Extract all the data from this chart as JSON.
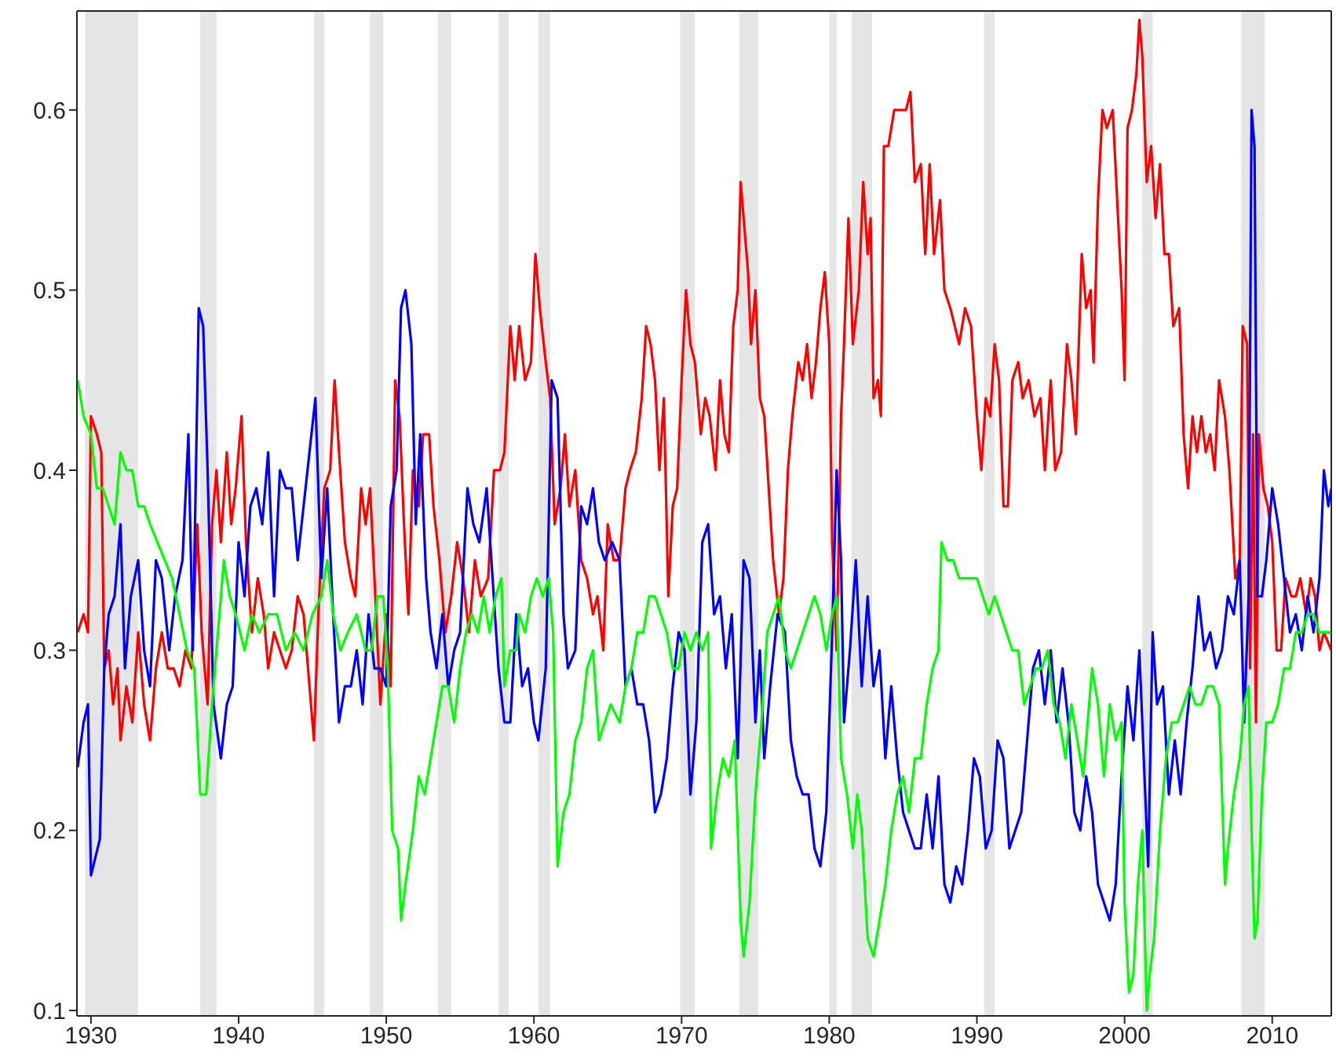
{
  "chart_data": {
    "type": "line",
    "xlim": [
      1929.05,
      2014
    ],
    "ylim": [
      0.097,
      0.655
    ],
    "xticks": [
      1930,
      1940,
      1950,
      1960,
      1970,
      1980,
      1990,
      2000,
      2010
    ],
    "yticks": [
      0.1,
      0.2,
      0.3,
      0.4,
      0.5,
      0.6
    ],
    "grid": false,
    "marker": "none",
    "line_style": "solid",
    "bands": [
      {
        "axis": "x",
        "from": 1929.6,
        "to": 1933.2,
        "color": "#e5e5e5"
      },
      {
        "axis": "x",
        "from": 1937.4,
        "to": 1938.5,
        "color": "#e5e5e5"
      },
      {
        "axis": "x",
        "from": 1945.1,
        "to": 1945.8,
        "color": "#e5e5e5"
      },
      {
        "axis": "x",
        "from": 1948.9,
        "to": 1949.8,
        "color": "#e5e5e5"
      },
      {
        "axis": "x",
        "from": 1953.5,
        "to": 1954.4,
        "color": "#e5e5e5"
      },
      {
        "axis": "x",
        "from": 1957.6,
        "to": 1958.3,
        "color": "#e5e5e5"
      },
      {
        "axis": "x",
        "from": 1960.3,
        "to": 1961.1,
        "color": "#e5e5e5"
      },
      {
        "axis": "x",
        "from": 1969.9,
        "to": 1970.9,
        "color": "#e5e5e5"
      },
      {
        "axis": "x",
        "from": 1973.9,
        "to": 1975.2,
        "color": "#e5e5e5"
      },
      {
        "axis": "x",
        "from": 1980.0,
        "to": 1980.5,
        "color": "#e5e5e5"
      },
      {
        "axis": "x",
        "from": 1981.5,
        "to": 1982.9,
        "color": "#e5e5e5"
      },
      {
        "axis": "x",
        "from": 1990.5,
        "to": 1991.2,
        "color": "#e5e5e5"
      },
      {
        "axis": "x",
        "from": 2001.2,
        "to": 2001.9,
        "color": "#e5e5e5"
      },
      {
        "axis": "x",
        "from": 2007.9,
        "to": 2009.5,
        "color": "#e5e5e5"
      }
    ],
    "series": [
      {
        "color": "#ff0000",
        "x": [
          1929.1,
          1929.5,
          1929.8,
          1930.0,
          1930.4,
          1930.7,
          1930.9,
          1931.2,
          1931.5,
          1931.8,
          1932.0,
          1932.4,
          1932.8,
          1933.2,
          1933.6,
          1934.0,
          1934.4,
          1934.8,
          1935.2,
          1935.6,
          1936.0,
          1936.4,
          1936.8,
          1937.2,
          1937.5,
          1937.9,
          1938.2,
          1938.5,
          1938.8,
          1939.2,
          1939.5,
          1939.8,
          1940.2,
          1940.5,
          1940.9,
          1941.3,
          1941.7,
          1942.0,
          1942.4,
          1942.8,
          1943.2,
          1943.6,
          1944.0,
          1944.4,
          1944.8,
          1945.1,
          1945.4,
          1945.8,
          1946.2,
          1946.5,
          1946.8,
          1947.2,
          1947.6,
          1947.9,
          1948.3,
          1948.6,
          1948.9,
          1949.2,
          1949.6,
          1950.0,
          1950.3,
          1950.6,
          1950.9,
          1951.2,
          1951.5,
          1951.8,
          1952.2,
          1952.5,
          1952.9,
          1953.2,
          1953.6,
          1954.0,
          1954.4,
          1954.8,
          1955.2,
          1955.6,
          1956.0,
          1956.4,
          1956.9,
          1957.3,
          1957.7,
          1958.0,
          1958.4,
          1958.7,
          1959.0,
          1959.4,
          1959.8,
          1960.1,
          1960.4,
          1960.8,
          1961.1,
          1961.4,
          1961.8,
          1962.1,
          1962.4,
          1962.8,
          1963.2,
          1963.6,
          1964.0,
          1964.3,
          1964.7,
          1965.0,
          1965.4,
          1965.8,
          1966.2,
          1966.5,
          1966.9,
          1967.3,
          1967.6,
          1967.9,
          1968.2,
          1968.5,
          1968.8,
          1969.1,
          1969.4,
          1969.7,
          1970.0,
          1970.3,
          1970.6,
          1970.9,
          1971.3,
          1971.6,
          1971.9,
          1972.3,
          1972.6,
          1972.9,
          1973.2,
          1973.5,
          1973.8,
          1974.0,
          1974.2,
          1974.5,
          1974.7,
          1975.0,
          1975.3,
          1975.6,
          1975.9,
          1976.2,
          1976.6,
          1976.9,
          1977.2,
          1977.5,
          1977.9,
          1978.2,
          1978.5,
          1978.8,
          1979.1,
          1979.4,
          1979.7,
          1980.0,
          1980.2,
          1980.5,
          1980.8,
          1981.0,
          1981.3,
          1981.6,
          1982.0,
          1982.3,
          1982.6,
          1982.8,
          1983.0,
          1983.3,
          1983.5,
          1983.7,
          1984.0,
          1984.4,
          1984.8,
          1985.2,
          1985.5,
          1985.8,
          1986.2,
          1986.5,
          1986.8,
          1987.1,
          1987.5,
          1987.8,
          1988.2,
          1988.5,
          1988.8,
          1989.2,
          1989.6,
          1990.0,
          1990.3,
          1990.6,
          1990.9,
          1991.2,
          1991.5,
          1991.8,
          1992.1,
          1992.4,
          1992.8,
          1993.1,
          1993.5,
          1993.9,
          1994.3,
          1994.6,
          1995.0,
          1995.3,
          1995.7,
          1996.1,
          1996.4,
          1996.7,
          1997.1,
          1997.4,
          1997.7,
          1997.9,
          1998.2,
          1998.5,
          1998.8,
          1999.2,
          1999.5,
          1999.8,
          2000.0,
          2000.2,
          2000.5,
          2000.8,
          2001.0,
          2001.2,
          2001.5,
          2001.8,
          2002.1,
          2002.4,
          2002.7,
          2003.0,
          2003.3,
          2003.7,
          2004.0,
          2004.3,
          2004.6,
          2004.9,
          2005.2,
          2005.5,
          2005.8,
          2006.1,
          2006.4,
          2006.8,
          2007.1,
          2007.5,
          2007.8,
          2008.0,
          2008.3,
          2008.5,
          2008.7,
          2008.9,
          2009.1,
          2009.4,
          2009.7,
          2010.0,
          2010.3,
          2010.6,
          2010.9,
          2011.3,
          2011.6,
          2011.9,
          2012.3,
          2012.6,
          2012.9,
          2013.2,
          2013.5,
          2014.0
        ],
        "values": [
          0.31,
          0.32,
          0.31,
          0.43,
          0.42,
          0.41,
          0.29,
          0.3,
          0.27,
          0.29,
          0.25,
          0.28,
          0.26,
          0.31,
          0.27,
          0.25,
          0.29,
          0.31,
          0.29,
          0.29,
          0.28,
          0.3,
          0.29,
          0.37,
          0.31,
          0.27,
          0.37,
          0.4,
          0.36,
          0.41,
          0.37,
          0.39,
          0.43,
          0.36,
          0.31,
          0.34,
          0.32,
          0.29,
          0.31,
          0.3,
          0.29,
          0.3,
          0.33,
          0.32,
          0.28,
          0.25,
          0.32,
          0.39,
          0.4,
          0.45,
          0.41,
          0.36,
          0.34,
          0.33,
          0.39,
          0.37,
          0.39,
          0.34,
          0.27,
          0.32,
          0.28,
          0.45,
          0.43,
          0.37,
          0.32,
          0.4,
          0.38,
          0.42,
          0.42,
          0.38,
          0.35,
          0.31,
          0.33,
          0.36,
          0.34,
          0.31,
          0.35,
          0.33,
          0.34,
          0.4,
          0.4,
          0.41,
          0.48,
          0.45,
          0.48,
          0.45,
          0.46,
          0.52,
          0.49,
          0.46,
          0.44,
          0.37,
          0.39,
          0.42,
          0.38,
          0.4,
          0.35,
          0.34,
          0.32,
          0.33,
          0.3,
          0.37,
          0.35,
          0.35,
          0.39,
          0.4,
          0.41,
          0.44,
          0.48,
          0.47,
          0.45,
          0.4,
          0.44,
          0.33,
          0.38,
          0.39,
          0.45,
          0.5,
          0.47,
          0.46,
          0.42,
          0.44,
          0.43,
          0.4,
          0.45,
          0.42,
          0.41,
          0.48,
          0.5,
          0.56,
          0.54,
          0.51,
          0.47,
          0.5,
          0.44,
          0.43,
          0.39,
          0.35,
          0.32,
          0.34,
          0.4,
          0.43,
          0.46,
          0.45,
          0.47,
          0.44,
          0.46,
          0.49,
          0.51,
          0.47,
          0.36,
          0.3,
          0.43,
          0.47,
          0.54,
          0.47,
          0.5,
          0.56,
          0.52,
          0.54,
          0.44,
          0.45,
          0.43,
          0.58,
          0.58,
          0.6,
          0.6,
          0.6,
          0.61,
          0.56,
          0.57,
          0.52,
          0.57,
          0.52,
          0.55,
          0.5,
          0.49,
          0.48,
          0.47,
          0.49,
          0.48,
          0.43,
          0.4,
          0.44,
          0.43,
          0.47,
          0.45,
          0.38,
          0.38,
          0.45,
          0.46,
          0.44,
          0.45,
          0.43,
          0.44,
          0.4,
          0.45,
          0.4,
          0.41,
          0.47,
          0.45,
          0.42,
          0.52,
          0.49,
          0.5,
          0.46,
          0.55,
          0.6,
          0.59,
          0.6,
          0.55,
          0.5,
          0.45,
          0.59,
          0.6,
          0.62,
          0.65,
          0.63,
          0.56,
          0.58,
          0.54,
          0.57,
          0.52,
          0.52,
          0.48,
          0.49,
          0.42,
          0.39,
          0.43,
          0.41,
          0.43,
          0.41,
          0.42,
          0.4,
          0.45,
          0.43,
          0.4,
          0.34,
          0.35,
          0.48,
          0.47,
          0.29,
          0.42,
          0.26,
          0.42,
          0.39,
          0.38,
          0.36,
          0.3,
          0.3,
          0.34,
          0.33,
          0.33,
          0.34,
          0.32,
          0.34,
          0.33,
          0.3,
          0.31,
          0.3
        ]
      },
      {
        "color": "#0000ff",
        "x": [
          1929.1,
          1929.5,
          1929.8,
          1930.0,
          1930.6,
          1930.9,
          1931.2,
          1931.6,
          1932.0,
          1932.3,
          1932.7,
          1933.2,
          1933.6,
          1934.0,
          1934.4,
          1934.8,
          1935.3,
          1935.7,
          1936.2,
          1936.6,
          1936.9,
          1937.3,
          1937.6,
          1937.9,
          1938.3,
          1938.8,
          1939.2,
          1939.6,
          1940.0,
          1940.4,
          1940.8,
          1941.2,
          1941.6,
          1942.0,
          1942.4,
          1942.8,
          1943.2,
          1943.6,
          1944.0,
          1944.4,
          1944.8,
          1945.2,
          1945.6,
          1946.0,
          1946.4,
          1946.8,
          1947.2,
          1947.6,
          1948.0,
          1948.4,
          1948.8,
          1949.2,
          1949.6,
          1950.0,
          1950.3,
          1950.7,
          1951.0,
          1951.3,
          1951.7,
          1952.0,
          1952.3,
          1952.7,
          1953.0,
          1953.4,
          1953.8,
          1954.2,
          1954.6,
          1955.0,
          1955.5,
          1955.9,
          1956.3,
          1956.8,
          1957.2,
          1957.6,
          1958.0,
          1958.4,
          1958.8,
          1959.2,
          1959.6,
          1960.0,
          1960.3,
          1960.8,
          1961.2,
          1961.6,
          1962.0,
          1962.3,
          1962.8,
          1963.2,
          1963.6,
          1964.0,
          1964.4,
          1964.8,
          1965.3,
          1965.8,
          1966.2,
          1966.6,
          1967.0,
          1967.4,
          1967.8,
          1968.2,
          1968.6,
          1969.0,
          1969.4,
          1969.8,
          1970.2,
          1970.6,
          1971.0,
          1971.4,
          1971.8,
          1972.2,
          1972.6,
          1973.0,
          1973.4,
          1973.8,
          1974.2,
          1974.6,
          1975.0,
          1975.3,
          1975.6,
          1976.0,
          1976.5,
          1977.0,
          1977.4,
          1977.8,
          1978.2,
          1978.6,
          1979.0,
          1979.4,
          1979.8,
          1980.2,
          1980.5,
          1980.8,
          1981.0,
          1981.4,
          1981.8,
          1982.2,
          1982.6,
          1983.0,
          1983.4,
          1983.8,
          1984.2,
          1984.6,
          1985.0,
          1985.4,
          1985.8,
          1986.2,
          1986.6,
          1987.0,
          1987.4,
          1987.8,
          1988.2,
          1988.6,
          1989.0,
          1989.4,
          1989.8,
          1990.2,
          1990.6,
          1991.0,
          1991.4,
          1991.8,
          1992.2,
          1992.6,
          1993.0,
          1993.4,
          1993.8,
          1994.2,
          1994.6,
          1995.0,
          1995.4,
          1995.8,
          1996.2,
          1996.6,
          1997.0,
          1997.4,
          1997.8,
          1998.2,
          1998.6,
          1999.0,
          1999.4,
          1999.8,
          2000.2,
          2000.6,
          2001.0,
          2001.3,
          2001.6,
          2001.9,
          2002.2,
          2002.6,
          2003.0,
          2003.4,
          2003.8,
          2004.2,
          2004.6,
          2005.0,
          2005.4,
          2005.8,
          2006.2,
          2006.6,
          2007.0,
          2007.4,
          2007.8,
          2008.1,
          2008.4,
          2008.6,
          2008.8,
          2009.0,
          2009.3,
          2009.6,
          2010.0,
          2010.4,
          2010.8,
          2011.2,
          2011.6,
          2012.0,
          2012.4,
          2012.8,
          2013.2,
          2013.5,
          2013.8,
          2014.0
        ],
        "values": [
          0.235,
          0.26,
          0.27,
          0.175,
          0.195,
          0.29,
          0.32,
          0.33,
          0.37,
          0.29,
          0.33,
          0.35,
          0.3,
          0.28,
          0.35,
          0.34,
          0.3,
          0.33,
          0.35,
          0.42,
          0.3,
          0.49,
          0.48,
          0.4,
          0.27,
          0.24,
          0.27,
          0.28,
          0.36,
          0.33,
          0.38,
          0.39,
          0.37,
          0.41,
          0.33,
          0.4,
          0.39,
          0.39,
          0.35,
          0.38,
          0.41,
          0.44,
          0.34,
          0.39,
          0.32,
          0.26,
          0.28,
          0.28,
          0.3,
          0.27,
          0.32,
          0.29,
          0.29,
          0.28,
          0.38,
          0.4,
          0.49,
          0.5,
          0.47,
          0.37,
          0.42,
          0.34,
          0.31,
          0.29,
          0.32,
          0.28,
          0.3,
          0.31,
          0.39,
          0.37,
          0.36,
          0.39,
          0.34,
          0.29,
          0.26,
          0.26,
          0.32,
          0.28,
          0.29,
          0.26,
          0.25,
          0.29,
          0.45,
          0.44,
          0.32,
          0.29,
          0.3,
          0.38,
          0.37,
          0.39,
          0.36,
          0.35,
          0.36,
          0.35,
          0.28,
          0.29,
          0.27,
          0.27,
          0.25,
          0.21,
          0.22,
          0.24,
          0.28,
          0.31,
          0.3,
          0.22,
          0.26,
          0.36,
          0.37,
          0.32,
          0.33,
          0.29,
          0.32,
          0.24,
          0.35,
          0.34,
          0.26,
          0.3,
          0.24,
          0.28,
          0.32,
          0.31,
          0.25,
          0.23,
          0.22,
          0.22,
          0.19,
          0.18,
          0.21,
          0.31,
          0.4,
          0.35,
          0.26,
          0.3,
          0.35,
          0.28,
          0.33,
          0.28,
          0.3,
          0.24,
          0.28,
          0.24,
          0.21,
          0.2,
          0.19,
          0.19,
          0.22,
          0.19,
          0.23,
          0.17,
          0.16,
          0.18,
          0.17,
          0.2,
          0.24,
          0.23,
          0.19,
          0.2,
          0.25,
          0.24,
          0.19,
          0.2,
          0.21,
          0.25,
          0.29,
          0.3,
          0.27,
          0.3,
          0.26,
          0.29,
          0.26,
          0.21,
          0.2,
          0.23,
          0.21,
          0.17,
          0.16,
          0.15,
          0.17,
          0.23,
          0.28,
          0.25,
          0.3,
          0.24,
          0.18,
          0.31,
          0.27,
          0.28,
          0.22,
          0.25,
          0.22,
          0.26,
          0.29,
          0.33,
          0.3,
          0.31,
          0.29,
          0.3,
          0.33,
          0.32,
          0.35,
          0.26,
          0.33,
          0.6,
          0.58,
          0.33,
          0.33,
          0.35,
          0.39,
          0.37,
          0.34,
          0.31,
          0.32,
          0.3,
          0.33,
          0.31,
          0.34,
          0.4,
          0.38,
          0.39
        ]
      },
      {
        "color": "#00ff00",
        "x": [
          1929.1,
          1929.5,
          1930.0,
          1930.4,
          1930.8,
          1931.2,
          1931.6,
          1932.0,
          1932.4,
          1932.8,
          1933.2,
          1933.6,
          1934.0,
          1934.5,
          1935.0,
          1935.5,
          1936.0,
          1936.5,
          1937.0,
          1937.4,
          1937.8,
          1938.2,
          1938.6,
          1939.0,
          1939.4,
          1939.8,
          1940.4,
          1940.9,
          1941.4,
          1942.0,
          1942.6,
          1943.2,
          1943.8,
          1944.4,
          1945.0,
          1945.6,
          1946.0,
          1946.4,
          1946.9,
          1947.4,
          1948.0,
          1948.6,
          1949.0,
          1949.4,
          1949.8,
          1950.1,
          1950.4,
          1950.8,
          1951.0,
          1951.3,
          1951.8,
          1952.2,
          1952.6,
          1953.0,
          1953.4,
          1953.8,
          1954.2,
          1954.6,
          1955.0,
          1955.4,
          1955.8,
          1956.2,
          1956.6,
          1957.0,
          1957.4,
          1957.8,
          1958.0,
          1958.4,
          1958.8,
          1959.0,
          1959.4,
          1959.8,
          1960.2,
          1960.6,
          1961.0,
          1961.3,
          1961.6,
          1962.0,
          1962.4,
          1962.8,
          1963.2,
          1963.6,
          1964.0,
          1964.4,
          1964.8,
          1965.2,
          1965.8,
          1966.2,
          1966.6,
          1967.0,
          1967.4,
          1967.8,
          1968.2,
          1968.6,
          1969.0,
          1969.4,
          1969.8,
          1970.2,
          1970.6,
          1971.0,
          1971.4,
          1971.8,
          1972.0,
          1972.4,
          1972.8,
          1973.2,
          1973.6,
          1974.0,
          1974.2,
          1974.6,
          1975.0,
          1975.4,
          1975.8,
          1976.2,
          1976.6,
          1977.0,
          1977.4,
          1977.8,
          1978.2,
          1978.6,
          1979.0,
          1979.4,
          1979.8,
          1980.2,
          1980.5,
          1980.8,
          1981.2,
          1981.6,
          1981.9,
          1982.2,
          1982.6,
          1983.0,
          1983.4,
          1983.8,
          1984.2,
          1984.6,
          1985.0,
          1985.4,
          1985.8,
          1986.2,
          1986.6,
          1987.0,
          1987.4,
          1987.6,
          1988.0,
          1988.4,
          1988.8,
          1989.2,
          1989.6,
          1990.0,
          1990.4,
          1990.8,
          1991.2,
          1991.6,
          1992.0,
          1992.4,
          1992.8,
          1993.2,
          1993.6,
          1994.0,
          1994.4,
          1994.8,
          1995.2,
          1995.6,
          1996.0,
          1996.4,
          1996.8,
          1997.2,
          1997.6,
          1997.8,
          1998.2,
          1998.6,
          1999.0,
          1999.4,
          1999.8,
          2000.0,
          2000.3,
          2000.6,
          2000.9,
          2001.2,
          2001.5,
          2001.7,
          2002.0,
          2002.4,
          2002.8,
          2003.2,
          2003.6,
          2004.0,
          2004.4,
          2004.8,
          2005.2,
          2005.6,
          2006.0,
          2006.4,
          2006.8,
          2007.0,
          2007.4,
          2007.8,
          2008.1,
          2008.4,
          2008.6,
          2008.8,
          2009.0,
          2009.3,
          2009.6,
          2010.0,
          2010.4,
          2010.8,
          2011.2,
          2011.6,
          2012.0,
          2012.4,
          2012.8,
          2013.2,
          2013.6,
          2014.0
        ],
        "values": [
          0.45,
          0.43,
          0.42,
          0.39,
          0.39,
          0.38,
          0.37,
          0.41,
          0.4,
          0.4,
          0.38,
          0.38,
          0.37,
          0.36,
          0.35,
          0.34,
          0.32,
          0.3,
          0.29,
          0.22,
          0.22,
          0.27,
          0.31,
          0.35,
          0.33,
          0.32,
          0.3,
          0.32,
          0.31,
          0.32,
          0.32,
          0.3,
          0.31,
          0.3,
          0.32,
          0.33,
          0.35,
          0.32,
          0.3,
          0.31,
          0.32,
          0.3,
          0.3,
          0.33,
          0.33,
          0.29,
          0.2,
          0.19,
          0.15,
          0.17,
          0.2,
          0.23,
          0.22,
          0.24,
          0.26,
          0.28,
          0.28,
          0.26,
          0.29,
          0.31,
          0.32,
          0.31,
          0.33,
          0.31,
          0.33,
          0.34,
          0.28,
          0.3,
          0.3,
          0.32,
          0.31,
          0.33,
          0.34,
          0.33,
          0.34,
          0.31,
          0.18,
          0.21,
          0.22,
          0.25,
          0.26,
          0.29,
          0.3,
          0.25,
          0.26,
          0.27,
          0.26,
          0.28,
          0.29,
          0.31,
          0.31,
          0.33,
          0.33,
          0.32,
          0.31,
          0.29,
          0.29,
          0.31,
          0.3,
          0.31,
          0.3,
          0.31,
          0.19,
          0.22,
          0.24,
          0.23,
          0.25,
          0.15,
          0.13,
          0.16,
          0.22,
          0.26,
          0.31,
          0.32,
          0.33,
          0.3,
          0.29,
          0.3,
          0.31,
          0.32,
          0.33,
          0.32,
          0.3,
          0.32,
          0.33,
          0.24,
          0.22,
          0.19,
          0.22,
          0.2,
          0.14,
          0.13,
          0.15,
          0.17,
          0.2,
          0.22,
          0.23,
          0.21,
          0.24,
          0.24,
          0.27,
          0.29,
          0.3,
          0.36,
          0.35,
          0.35,
          0.34,
          0.34,
          0.34,
          0.34,
          0.33,
          0.32,
          0.33,
          0.32,
          0.31,
          0.3,
          0.3,
          0.27,
          0.28,
          0.29,
          0.29,
          0.3,
          0.27,
          0.26,
          0.24,
          0.27,
          0.25,
          0.23,
          0.27,
          0.29,
          0.27,
          0.23,
          0.27,
          0.25,
          0.26,
          0.16,
          0.11,
          0.12,
          0.17,
          0.2,
          0.1,
          0.12,
          0.14,
          0.2,
          0.24,
          0.26,
          0.26,
          0.27,
          0.28,
          0.27,
          0.27,
          0.28,
          0.28,
          0.27,
          0.17,
          0.19,
          0.22,
          0.24,
          0.27,
          0.28,
          0.2,
          0.14,
          0.15,
          0.22,
          0.26,
          0.26,
          0.27,
          0.29,
          0.29,
          0.31,
          0.31,
          0.32,
          0.32,
          0.31,
          0.31,
          0.31
        ]
      }
    ]
  }
}
